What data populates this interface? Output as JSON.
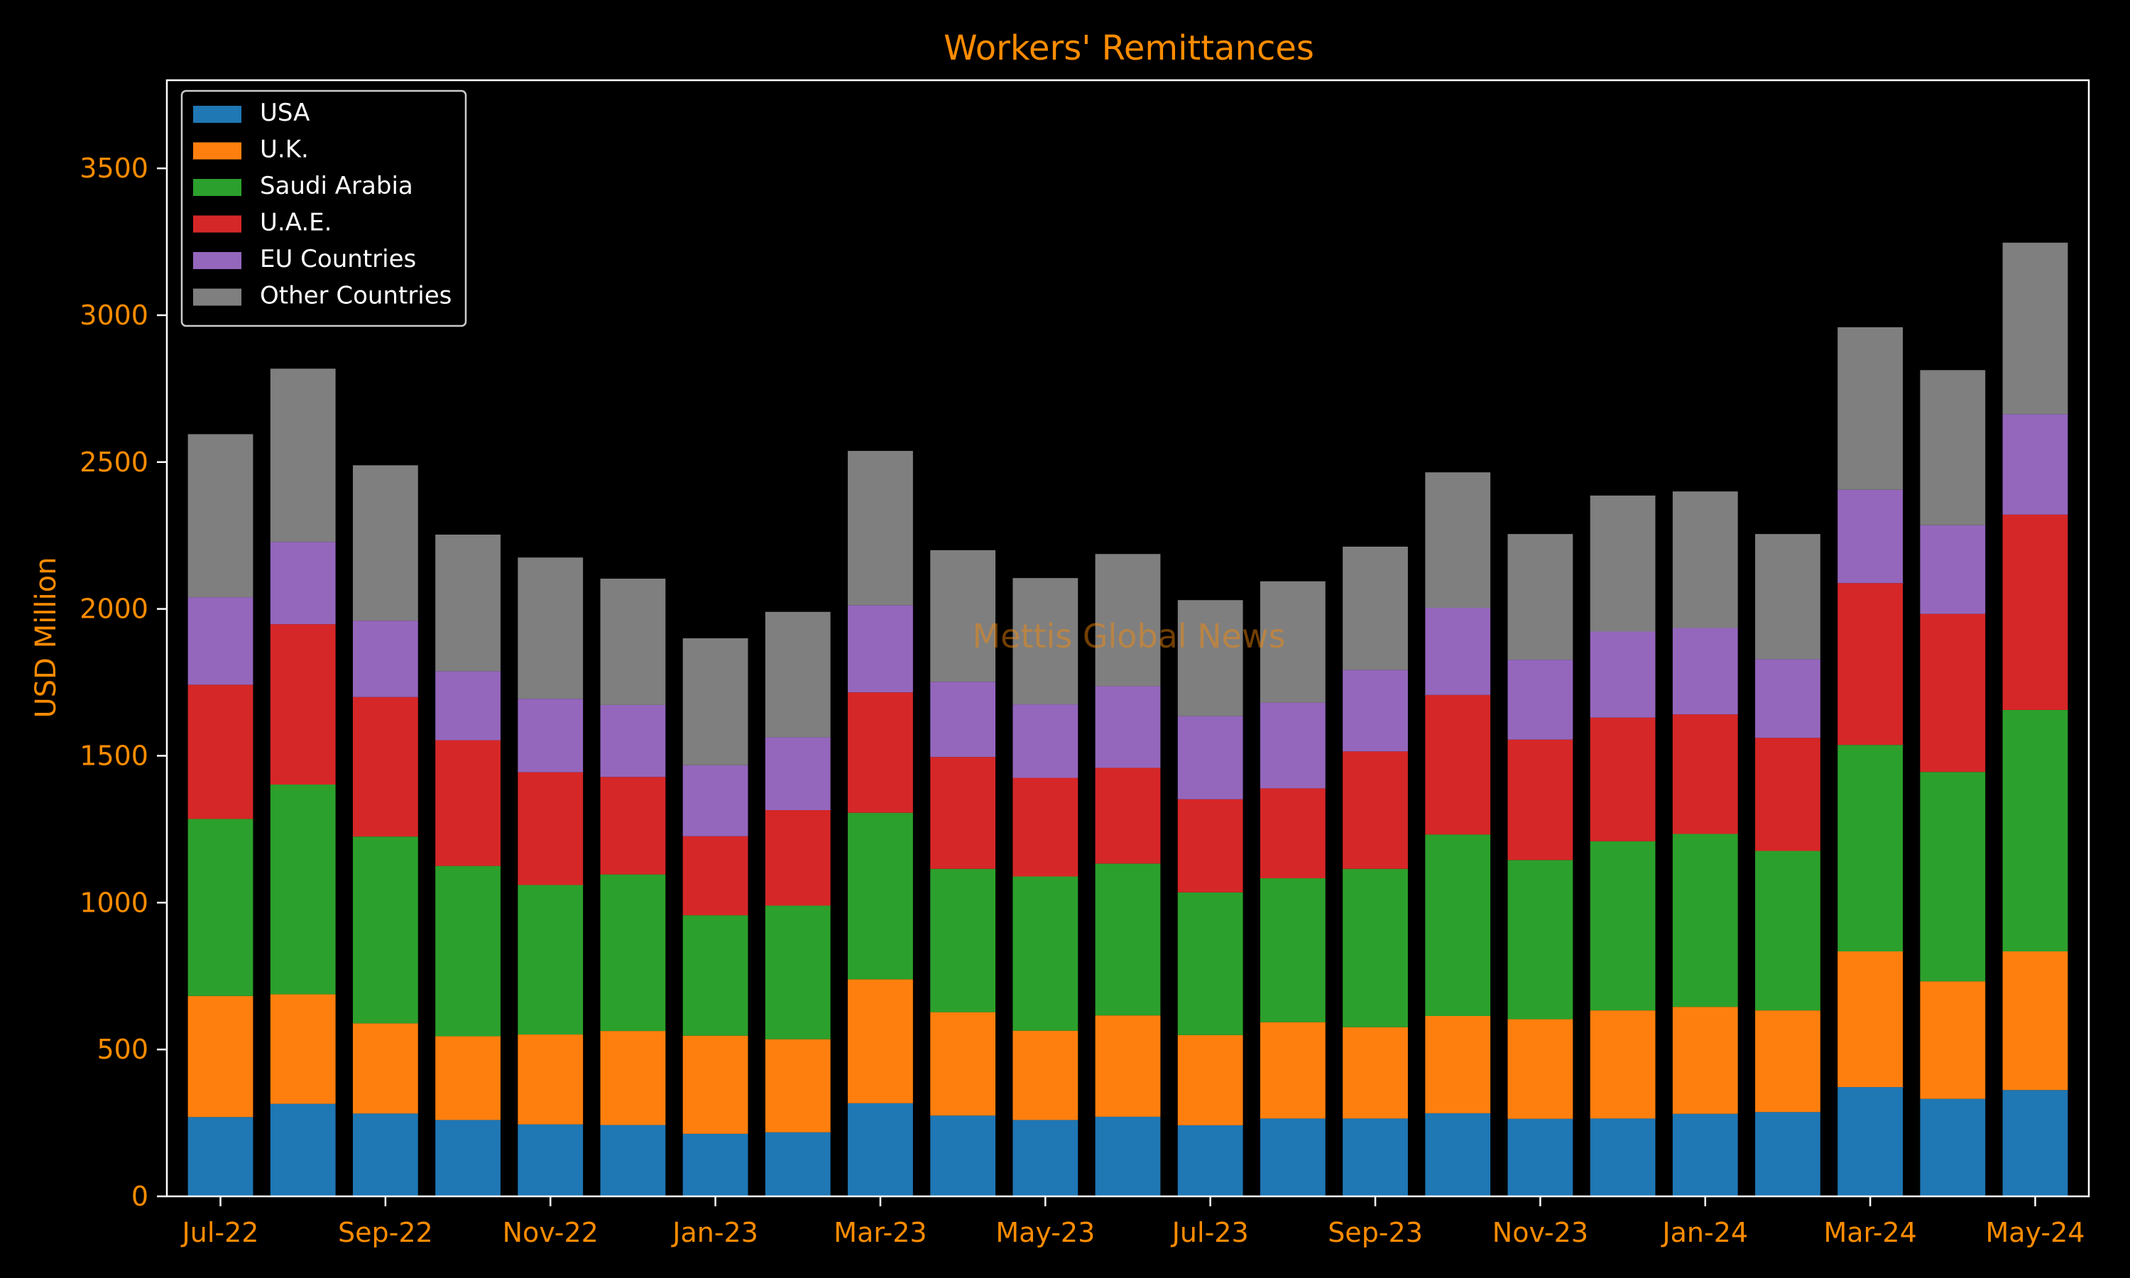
{
  "chart_data": {
    "type": "bar",
    "stacked": true,
    "title": "Workers' Remittances",
    "xlabel": "",
    "ylabel": "USD Million",
    "ylim": [
      0,
      3800
    ],
    "yticks": [
      0,
      500,
      1000,
      1500,
      2000,
      2500,
      3000,
      3500
    ],
    "xtick_labels": [
      "Jul-22",
      "Sep-22",
      "Nov-22",
      "Jan-23",
      "Mar-23",
      "May-23",
      "Jul-23",
      "Sep-23",
      "Nov-23",
      "Jan-24",
      "Mar-24",
      "May-24"
    ],
    "xtick_indices": [
      0,
      2,
      4,
      6,
      8,
      10,
      12,
      14,
      16,
      18,
      20,
      22
    ],
    "categories": [
      "Jul-22",
      "Aug-22",
      "Sep-22",
      "Oct-22",
      "Nov-22",
      "Dec-22",
      "Jan-23",
      "Feb-23",
      "Mar-23",
      "Apr-23",
      "May-23",
      "Jun-23",
      "Jul-23",
      "Aug-23",
      "Sep-23",
      "Oct-23",
      "Nov-23",
      "Dec-23",
      "Jan-24",
      "Feb-24",
      "Mar-24",
      "Apr-24",
      "May-24"
    ],
    "grid": false,
    "legend_position": "top-left",
    "watermark": "Mettis Global News",
    "series": [
      {
        "name": "USA",
        "color": "#1f77b4",
        "values": [
          270,
          315,
          282,
          260,
          245,
          243,
          213,
          218,
          317,
          275,
          260,
          271,
          242,
          265,
          265,
          283,
          264,
          265,
          281,
          287,
          372,
          332,
          362
        ]
      },
      {
        "name": "U.K.",
        "color": "#ff7f0e",
        "values": [
          412,
          373,
          307,
          285,
          306,
          320,
          334,
          317,
          422,
          352,
          304,
          345,
          307,
          328,
          311,
          331,
          339,
          368,
          364,
          346,
          462,
          400,
          472
        ]
      },
      {
        "name": "Saudi Arabia",
        "color": "#2ca02c",
        "values": [
          603,
          714,
          636,
          580,
          509,
          533,
          410,
          455,
          567,
          488,
          525,
          517,
          486,
          490,
          539,
          618,
          542,
          576,
          589,
          543,
          703,
          713,
          822
        ]
      },
      {
        "name": "U.A.E.",
        "color": "#d62728",
        "values": [
          457,
          546,
          475,
          428,
          384,
          332,
          269,
          325,
          410,
          381,
          336,
          326,
          317,
          306,
          400,
          475,
          410,
          421,
          407,
          385,
          551,
          538,
          665
        ]
      },
      {
        "name": "EU Countries",
        "color": "#9467bd",
        "values": [
          298,
          280,
          260,
          235,
          250,
          245,
          242,
          248,
          297,
          256,
          250,
          278,
          283,
          292,
          277,
          297,
          272,
          293,
          294,
          268,
          318,
          302,
          342
        ]
      },
      {
        "name": "Other Countries",
        "color": "#7f7f7f",
        "values": [
          555,
          590,
          529,
          465,
          481,
          430,
          432,
          427,
          525,
          448,
          430,
          450,
          395,
          413,
          420,
          461,
          428,
          463,
          465,
          426,
          553,
          528,
          584
        ]
      }
    ],
    "colors": {
      "background": "#000000",
      "axes": "#ffffff",
      "text_accent": "#ff8c00",
      "legend_text": "#ffffff"
    }
  }
}
